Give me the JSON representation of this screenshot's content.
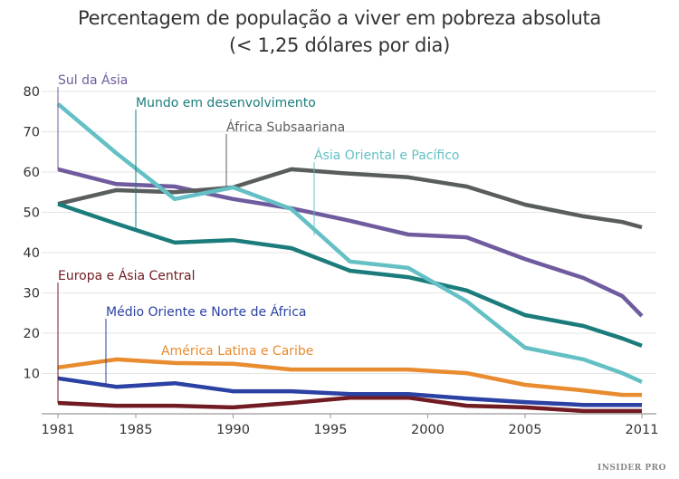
{
  "chart_data": {
    "type": "line",
    "title": "Percentagem de população a viver em pobreza absoluta",
    "subtitle": "(< 1,25 dólares por dia)",
    "xlabel": "",
    "ylabel": "",
    "x": [
      1981,
      1984,
      1987,
      1990,
      1993,
      1996,
      1999,
      2002,
      2005,
      2008,
      2010,
      2011
    ],
    "x_ticks": [
      1981,
      1985,
      1990,
      1995,
      2000,
      2005,
      2011
    ],
    "y_ticks": [
      10,
      20,
      30,
      40,
      50,
      60,
      70,
      80
    ],
    "ylim": [
      0,
      80
    ],
    "xlim": [
      1981,
      2011
    ],
    "grid": "horizontal",
    "series": [
      {
        "name": "Sul da Ásia",
        "color": "#6f5b9e",
        "values": [
          60.7,
          57.0,
          56.4,
          53.3,
          51.0,
          47.9,
          44.5,
          43.8,
          38.4,
          33.7,
          29.2,
          24.3
        ]
      },
      {
        "name": "Mundo em desenvolvimento",
        "color": "#1b7c7b",
        "values": [
          52.1,
          47.2,
          42.5,
          43.1,
          41.1,
          35.5,
          33.9,
          30.6,
          24.5,
          21.8,
          18.7,
          16.9
        ]
      },
      {
        "name": "África Subsaariana",
        "color": "#5a5d5d",
        "values": [
          52.1,
          55.5,
          55.0,
          56.2,
          60.7,
          59.6,
          58.7,
          56.4,
          51.9,
          49.0,
          47.6,
          46.3
        ]
      },
      {
        "name": "Ásia Oriental e Pacífico",
        "color": "#64c0c4",
        "values": [
          76.9,
          64.7,
          53.3,
          56.2,
          50.8,
          37.8,
          36.2,
          27.9,
          16.4,
          13.5,
          10.1,
          7.9
        ]
      },
      {
        "name": "Europa e Ásia Central",
        "color": "#701c22",
        "values": [
          2.7,
          2.0,
          2.0,
          1.6,
          2.7,
          4.0,
          4.0,
          2.0,
          1.6,
          0.7,
          0.7,
          0.7
        ]
      },
      {
        "name": "Médio Oriente e Norte de África",
        "color": "#2b41a3",
        "values": [
          8.8,
          6.7,
          7.6,
          5.6,
          5.6,
          4.9,
          4.9,
          3.8,
          2.9,
          2.2,
          2.2,
          2.2
        ]
      },
      {
        "name": "América Latina e Caribe",
        "color": "#e98b2f",
        "values": [
          11.5,
          13.5,
          12.6,
          12.4,
          11.0,
          11.0,
          11.0,
          10.1,
          7.2,
          5.8,
          4.7,
          4.7
        ]
      }
    ]
  },
  "branding": {
    "logo": "INSIDER PRO"
  }
}
